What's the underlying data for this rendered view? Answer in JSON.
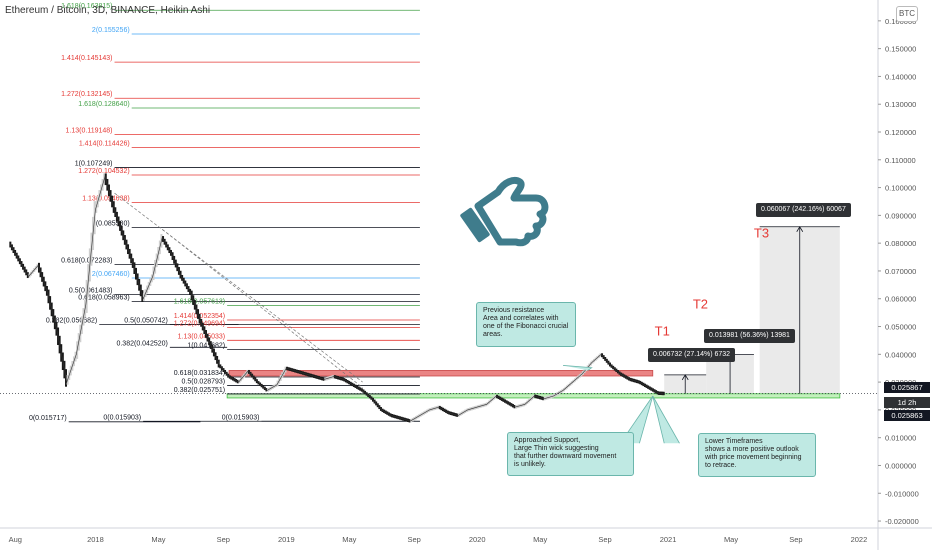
{
  "header": {
    "symbol_title": "Ethereum / Bitcoin, 3D, BINANCE, Heikin Ashi",
    "currency_badge": "BTC"
  },
  "colors": {
    "black": "#131722",
    "red": "#e53935",
    "green": "#43a047",
    "blue": "#42a5f5",
    "resistance_zone": "#e35b5b",
    "support_zone": "#7ddb6f",
    "note_bg": "#bfe9e3",
    "target_red": "#e53935",
    "thumb_icon": "#3f7c8c"
  },
  "chart_data": {
    "type": "line",
    "style": "heikin-ashi candles",
    "y_scale": "linear",
    "ylim": [
      -0.0225,
      0.1675
    ],
    "y_ticks": [
      "0.160000",
      "0.150000",
      "0.140000",
      "0.130000",
      "0.120000",
      "0.110000",
      "0.100000",
      "0.090000",
      "0.080000",
      "0.070000",
      "0.060000",
      "0.050000",
      "0.040000",
      "0.030000",
      "0.020000",
      "0.010000",
      "0.000000",
      "-0.010000",
      "-0.020000"
    ],
    "x_tick_labels": [
      {
        "label": "Aug",
        "t": 2017.58
      },
      {
        "label": "2018",
        "t": 2018.0
      },
      {
        "label": "May",
        "t": 2018.33
      },
      {
        "label": "Sep",
        "t": 2018.67
      },
      {
        "label": "2019",
        "t": 2019.0
      },
      {
        "label": "May",
        "t": 2019.33
      },
      {
        "label": "Sep",
        "t": 2019.67
      },
      {
        "label": "2020",
        "t": 2020.0
      },
      {
        "label": "May",
        "t": 2020.33
      },
      {
        "label": "Sep",
        "t": 2020.67
      },
      {
        "label": "2021",
        "t": 2021.0
      },
      {
        "label": "May",
        "t": 2021.33
      },
      {
        "label": "Sep",
        "t": 2021.67
      },
      {
        "label": "2022",
        "t": 2022.0
      }
    ],
    "price_series": {
      "t": [
        2017.55,
        2017.6,
        2017.65,
        2017.7,
        2017.75,
        2017.8,
        2017.85,
        2017.9,
        2017.95,
        2018.0,
        2018.05,
        2018.1,
        2018.15,
        2018.2,
        2018.25,
        2018.3,
        2018.35,
        2018.4,
        2018.45,
        2018.5,
        2018.55,
        2018.6,
        2018.65,
        2018.7,
        2018.75,
        2018.8,
        2018.85,
        2018.9,
        2018.95,
        2019.0,
        2019.05,
        2019.1,
        2019.15,
        2019.2,
        2019.25,
        2019.3,
        2019.35,
        2019.4,
        2019.45,
        2019.5,
        2019.55,
        2019.6,
        2019.65,
        2019.7,
        2019.75,
        2019.8,
        2019.85,
        2019.9,
        2019.95,
        2020.0,
        2020.05,
        2020.1,
        2020.15,
        2020.2,
        2020.25,
        2020.3,
        2020.35,
        2020.4,
        2020.45,
        2020.5,
        2020.55,
        2020.6,
        2020.65,
        2020.7,
        2020.75,
        2020.8,
        2020.85,
        2020.9,
        2020.95,
        2020.98
      ],
      "close": [
        0.08,
        0.074,
        0.068,
        0.072,
        0.062,
        0.048,
        0.03,
        0.04,
        0.058,
        0.092,
        0.104,
        0.092,
        0.082,
        0.072,
        0.06,
        0.068,
        0.082,
        0.076,
        0.068,
        0.062,
        0.052,
        0.044,
        0.036,
        0.032,
        0.03,
        0.034,
        0.03,
        0.027,
        0.029,
        0.035,
        0.034,
        0.033,
        0.032,
        0.031,
        0.032,
        0.031,
        0.029,
        0.027,
        0.024,
        0.02,
        0.018,
        0.017,
        0.016,
        0.018,
        0.02,
        0.021,
        0.019,
        0.018,
        0.02,
        0.021,
        0.022,
        0.025,
        0.023,
        0.021,
        0.022,
        0.025,
        0.024,
        0.025,
        0.027,
        0.03,
        0.033,
        0.037,
        0.04,
        0.036,
        0.033,
        0.031,
        0.03,
        0.028,
        0.026,
        0.0259
      ]
    },
    "fib_levels": [
      {
        "label": "1.618(0.163815)",
        "value": 0.163815,
        "color": "green"
      },
      {
        "label": "2(0.155256)",
        "value": 0.155256,
        "color": "blue"
      },
      {
        "label": "1.414(0.145143)",
        "value": 0.145143,
        "color": "red"
      },
      {
        "label": "1.272(0.132145)",
        "value": 0.132145,
        "color": "red"
      },
      {
        "label": "1.618(0.128640)",
        "value": 0.12864,
        "color": "green"
      },
      {
        "label": "1.13(0.119148)",
        "value": 0.119148,
        "color": "red"
      },
      {
        "label": "1.414(0.114426)",
        "value": 0.114426,
        "color": "red"
      },
      {
        "label": "1(0.107249)",
        "value": 0.107249,
        "color": "black"
      },
      {
        "label": "1.272(0.104532)",
        "value": 0.104532,
        "color": "red"
      },
      {
        "label": "1.13(0.094638)",
        "value": 0.094638,
        "color": "red"
      },
      {
        "label": "1(0.085580)",
        "value": 0.08558,
        "color": "black"
      },
      {
        "label": "0.618(0.072283)",
        "value": 0.072283,
        "color": "black"
      },
      {
        "label": "2(0.067460)",
        "value": 0.06746,
        "color": "blue"
      },
      {
        "label": "0.5(0.061483)",
        "value": 0.061483,
        "color": "black"
      },
      {
        "label": "0.618(0.058963)",
        "value": 0.058963,
        "color": "black"
      },
      {
        "label": "1.618(0.057613)",
        "value": 0.057613,
        "color": "green"
      },
      {
        "label": "1.414(0.052354)",
        "value": 0.052354,
        "color": "red"
      },
      {
        "label": "0.382(0.050682)",
        "value": 0.050682,
        "color": "black"
      },
      {
        "label": "0.5(0.050742)",
        "value": 0.050742,
        "color": "black"
      },
      {
        "label": "1.272(0.049694)",
        "value": 0.049694,
        "color": "red"
      },
      {
        "label": "1.13(0.045033)",
        "value": 0.045033,
        "color": "red"
      },
      {
        "label": "1(0.041682)",
        "value": 0.041682,
        "color": "black"
      },
      {
        "label": "0.382(0.042520)",
        "value": 0.04252,
        "color": "black"
      },
      {
        "label": "0.618(0.031834)",
        "value": 0.031834,
        "color": "black"
      },
      {
        "label": "0.5(0.028793)",
        "value": 0.028793,
        "color": "black"
      },
      {
        "label": "0.382(0.025751)",
        "value": 0.025751,
        "color": "black"
      },
      {
        "label": "0(0.015717)",
        "value": 0.015717,
        "color": "black"
      },
      {
        "label": "0(0.015903)",
        "value": 0.015903,
        "color": "black"
      },
      {
        "label": "0(0.015903)",
        "value": 0.015903,
        "color": "black"
      }
    ],
    "zones": {
      "resistance": {
        "low": 0.0322,
        "high": 0.0342
      },
      "support": {
        "low": 0.0243,
        "high": 0.0258
      }
    },
    "targets": [
      {
        "name": "T1",
        "info": "0.006732 (27.14%) 6732"
      },
      {
        "name": "T2",
        "info": "0.013981 (56.36%) 13981"
      },
      {
        "name": "T3",
        "info": "0.060067 (242.16%) 60067"
      }
    ],
    "price_tags": [
      "0.025867",
      "1d 2h",
      "0.025863"
    ]
  },
  "annotations": {
    "resistance_note": "Previous resistance\nArea and correlates with\none of the Fibonacci crucial\nareas.",
    "support_note": "Approached Support,\nLarge Thin wick suggesting\nthat further downward movement\nis unlikely.",
    "timeframe_note": "Lower Timeframes\nshows a more positive outlook\nwith price movement beginning\nto retrace."
  }
}
